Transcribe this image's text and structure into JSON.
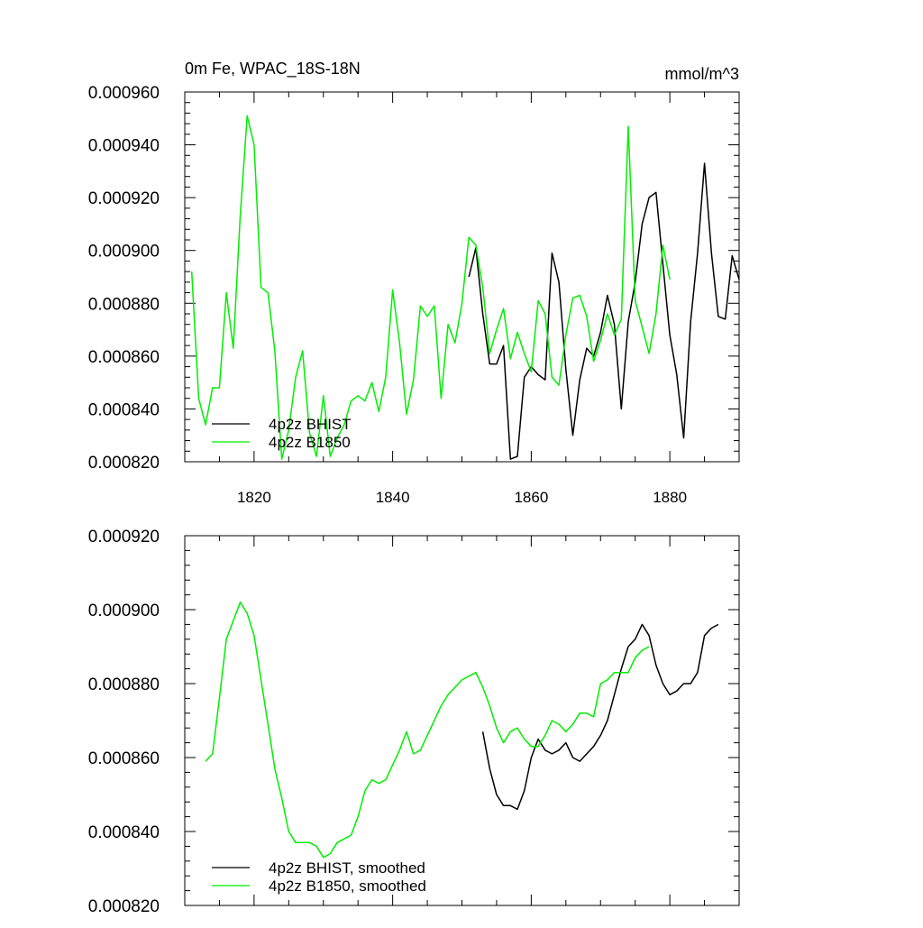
{
  "chart_data": [
    {
      "type": "line",
      "title": "0m Fe, WPAC_18S-18N",
      "units": "mmol/m^3",
      "xlim": [
        1810,
        1890
      ],
      "ylim": [
        0.00082,
        0.00096
      ],
      "xticks": [
        1820,
        1840,
        1860,
        1880
      ],
      "xtick_labels": [
        "1820",
        "1840",
        "1860",
        "1880"
      ],
      "yticks": [
        0.00082,
        0.00084,
        0.00086,
        0.00088,
        0.0009,
        0.00092,
        0.00094,
        0.00096
      ],
      "ytick_labels": [
        "0.000820",
        "0.000840",
        "0.000860",
        "0.000880",
        "0.000900",
        "0.000920",
        "0.000940",
        "0.000960"
      ],
      "legend_position": "bottom-left",
      "series": [
        {
          "name": "4p2z BHIST",
          "color": "#000000",
          "x": [
            1851,
            1852,
            1853,
            1854,
            1855,
            1856,
            1857,
            1858,
            1859,
            1860,
            1861,
            1862,
            1863,
            1864,
            1865,
            1866,
            1867,
            1868,
            1869,
            1870,
            1871,
            1872,
            1873,
            1874,
            1875,
            1876,
            1877,
            1878,
            1879,
            1880,
            1881,
            1882,
            1883,
            1884,
            1885,
            1886,
            1887,
            1888,
            1889,
            1890
          ],
          "values": [
            0.00089,
            0.000901,
            0.000876,
            0.000857,
            0.000857,
            0.000864,
            0.000821,
            0.000822,
            0.000852,
            0.000856,
            0.000853,
            0.000851,
            0.000899,
            0.000888,
            0.000855,
            0.00083,
            0.000851,
            0.000863,
            0.00086,
            0.000869,
            0.000883,
            0.000872,
            0.00084,
            0.000873,
            0.000888,
            0.00091,
            0.00092,
            0.000922,
            0.000895,
            0.000868,
            0.000853,
            0.000829,
            0.000873,
            0.000899,
            0.000933,
            0.000899,
            0.000875,
            0.000874,
            0.000898,
            0.000889
          ]
        },
        {
          "name": "4p2z B1850",
          "color": "#00ee00",
          "x": [
            1811,
            1812,
            1813,
            1814,
            1815,
            1816,
            1817,
            1818,
            1819,
            1820,
            1821,
            1822,
            1823,
            1824,
            1825,
            1826,
            1827,
            1828,
            1829,
            1830,
            1831,
            1832,
            1833,
            1834,
            1835,
            1836,
            1837,
            1838,
            1839,
            1840,
            1841,
            1842,
            1843,
            1844,
            1845,
            1846,
            1847,
            1848,
            1849,
            1850,
            1851,
            1852,
            1853,
            1854,
            1855,
            1856,
            1857,
            1858,
            1859,
            1860,
            1861,
            1862,
            1863,
            1864,
            1865,
            1866,
            1867,
            1868,
            1869,
            1870,
            1871,
            1872,
            1873,
            1874,
            1875,
            1876,
            1877,
            1878,
            1879,
            1880
          ],
          "values": [
            0.000892,
            0.000844,
            0.000834,
            0.000848,
            0.000848,
            0.000884,
            0.000863,
            0.000913,
            0.000951,
            0.00094,
            0.000886,
            0.000884,
            0.000862,
            0.000821,
            0.000832,
            0.000852,
            0.000862,
            0.000831,
            0.000822,
            0.000845,
            0.000822,
            0.000829,
            0.000834,
            0.000843,
            0.000845,
            0.000843,
            0.00085,
            0.000839,
            0.000852,
            0.000885,
            0.000865,
            0.000838,
            0.000851,
            0.000879,
            0.000875,
            0.000879,
            0.000844,
            0.000872,
            0.000865,
            0.00088,
            0.000905,
            0.000902,
            0.000886,
            0.000861,
            0.00087,
            0.000878,
            0.000859,
            0.000869,
            0.000861,
            0.000854,
            0.000881,
            0.000876,
            0.000852,
            0.000849,
            0.000868,
            0.000882,
            0.000883,
            0.000875,
            0.000858,
            0.000866,
            0.000876,
            0.000868,
            0.000874,
            0.000947,
            0.000881,
            0.000871,
            0.000861,
            0.000876,
            0.000902,
            0.000889
          ]
        }
      ]
    },
    {
      "type": "line",
      "xlim": [
        1810,
        1890
      ],
      "ylim": [
        0.00082,
        0.00092
      ],
      "xticks": [
        1820,
        1840,
        1860,
        1880
      ],
      "yticks": [
        0.00082,
        0.00084,
        0.00086,
        0.00088,
        0.0009,
        0.00092
      ],
      "ytick_labels": [
        "0.000820",
        "0.000840",
        "0.000860",
        "0.000880",
        "0.000900",
        "0.000920"
      ],
      "legend_position": "bottom-left",
      "series": [
        {
          "name": "4p2z BHIST, smoothed",
          "color": "#000000",
          "x": [
            1853,
            1854,
            1855,
            1856,
            1857,
            1858,
            1859,
            1860,
            1861,
            1862,
            1863,
            1864,
            1865,
            1866,
            1867,
            1868,
            1869,
            1870,
            1871,
            1872,
            1873,
            1874,
            1875,
            1876,
            1877,
            1878,
            1879,
            1880,
            1881,
            1882,
            1883,
            1884,
            1885,
            1886,
            1887
          ],
          "values": [
            0.000867,
            0.000857,
            0.00085,
            0.000847,
            0.000847,
            0.000846,
            0.000851,
            0.00086,
            0.000865,
            0.000862,
            0.000861,
            0.000862,
            0.000864,
            0.00086,
            0.000859,
            0.000861,
            0.000863,
            0.000866,
            0.00087,
            0.000877,
            0.000884,
            0.00089,
            0.000892,
            0.000896,
            0.000893,
            0.000885,
            0.00088,
            0.000877,
            0.000878,
            0.00088,
            0.00088,
            0.000883,
            0.000893,
            0.000895,
            0.000896
          ]
        },
        {
          "name": "4p2z B1850, smoothed",
          "color": "#00ee00",
          "x": [
            1813,
            1814,
            1815,
            1816,
            1817,
            1818,
            1819,
            1820,
            1821,
            1822,
            1823,
            1824,
            1825,
            1826,
            1827,
            1828,
            1829,
            1830,
            1831,
            1832,
            1833,
            1834,
            1835,
            1836,
            1837,
            1838,
            1839,
            1840,
            1841,
            1842,
            1843,
            1844,
            1845,
            1846,
            1847,
            1848,
            1849,
            1850,
            1851,
            1852,
            1853,
            1854,
            1855,
            1856,
            1857,
            1858,
            1859,
            1860,
            1861,
            1862,
            1863,
            1864,
            1865,
            1866,
            1867,
            1868,
            1869,
            1870,
            1871,
            1872,
            1873,
            1874,
            1875,
            1876,
            1877
          ],
          "values": [
            0.000859,
            0.000861,
            0.000876,
            0.000892,
            0.000897,
            0.000902,
            0.000899,
            0.000893,
            0.000881,
            0.000869,
            0.000857,
            0.000849,
            0.00084,
            0.000837,
            0.000837,
            0.000837,
            0.000836,
            0.000833,
            0.000834,
            0.000837,
            0.000838,
            0.000839,
            0.000844,
            0.000851,
            0.000854,
            0.000853,
            0.000854,
            0.000858,
            0.000862,
            0.000867,
            0.000861,
            0.000862,
            0.000866,
            0.00087,
            0.000874,
            0.000877,
            0.000879,
            0.000881,
            0.000882,
            0.000883,
            0.000879,
            0.000874,
            0.000868,
            0.000864,
            0.000867,
            0.000868,
            0.000865,
            0.000863,
            0.000863,
            0.000866,
            0.00087,
            0.000869,
            0.000867,
            0.000869,
            0.000872,
            0.000872,
            0.000871,
            0.00088,
            0.000881,
            0.000883,
            0.000883,
            0.000883,
            0.000887,
            0.000889,
            0.00089
          ]
        }
      ]
    }
  ]
}
